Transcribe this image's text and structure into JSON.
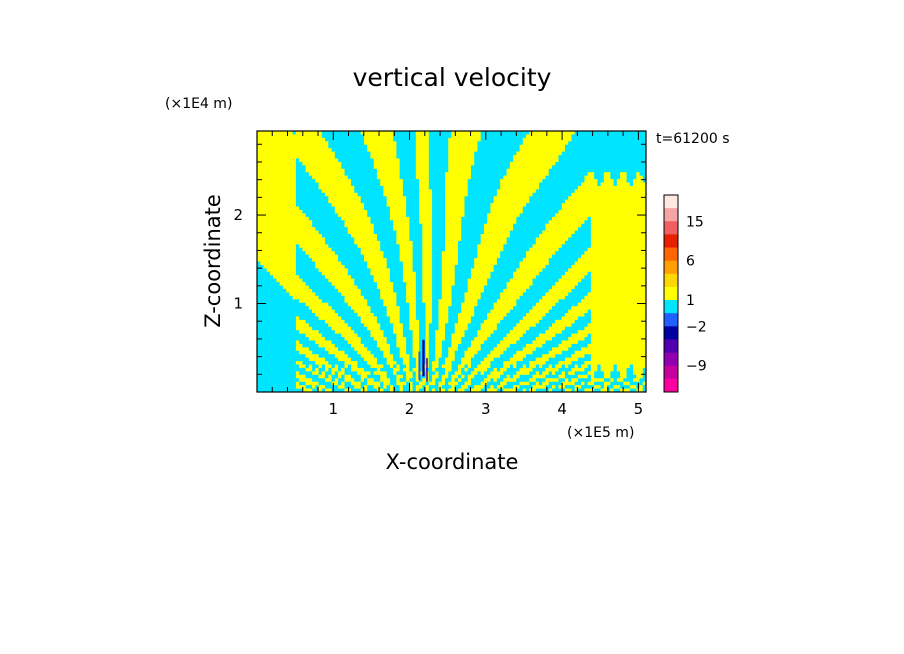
{
  "chart_data": {
    "type": "heatmap",
    "title": "vertical velocity",
    "xlabel": "X-coordinate",
    "ylabel": "Z-coordinate",
    "x_scale_label": "(×1E5 m)",
    "y_scale_label": "(×1E4 m)",
    "time_label": "t=61200 s",
    "x_ticks": [
      "1",
      "2",
      "3",
      "4",
      "5"
    ],
    "x_tick_values": [
      1,
      2,
      3,
      4,
      5
    ],
    "y_ticks": [
      "1",
      "2"
    ],
    "y_tick_values": [
      1,
      2
    ],
    "xlim": [
      0,
      5.1
    ],
    "ylim": [
      0,
      2.95
    ],
    "grid": false,
    "field_description": "alternating positive/negative vertical velocity bands fanning out from a source near x=2.2",
    "colors": {
      "positive_small": "#ffff00",
      "negative_small": "#00e5ff"
    },
    "colorbar": {
      "labels": [
        "15",
        "6",
        "1",
        "−2",
        "−9"
      ],
      "label_values": [
        15,
        6,
        1,
        -2,
        -9
      ],
      "levels": [
        {
          "color": "#ffe8e0"
        },
        {
          "color": "#f5a5a5"
        },
        {
          "color": "#f06060"
        },
        {
          "color": "#e82000"
        },
        {
          "color": "#ff6600"
        },
        {
          "color": "#ffa000"
        },
        {
          "color": "#ffd700"
        },
        {
          "color": "#ffff00"
        },
        {
          "color": "#00e5ff"
        },
        {
          "color": "#2060ff"
        },
        {
          "color": "#0000a0"
        },
        {
          "color": "#5000b0"
        },
        {
          "color": "#9000b0"
        },
        {
          "color": "#c800a0"
        },
        {
          "color": "#ff00a0"
        }
      ]
    }
  }
}
